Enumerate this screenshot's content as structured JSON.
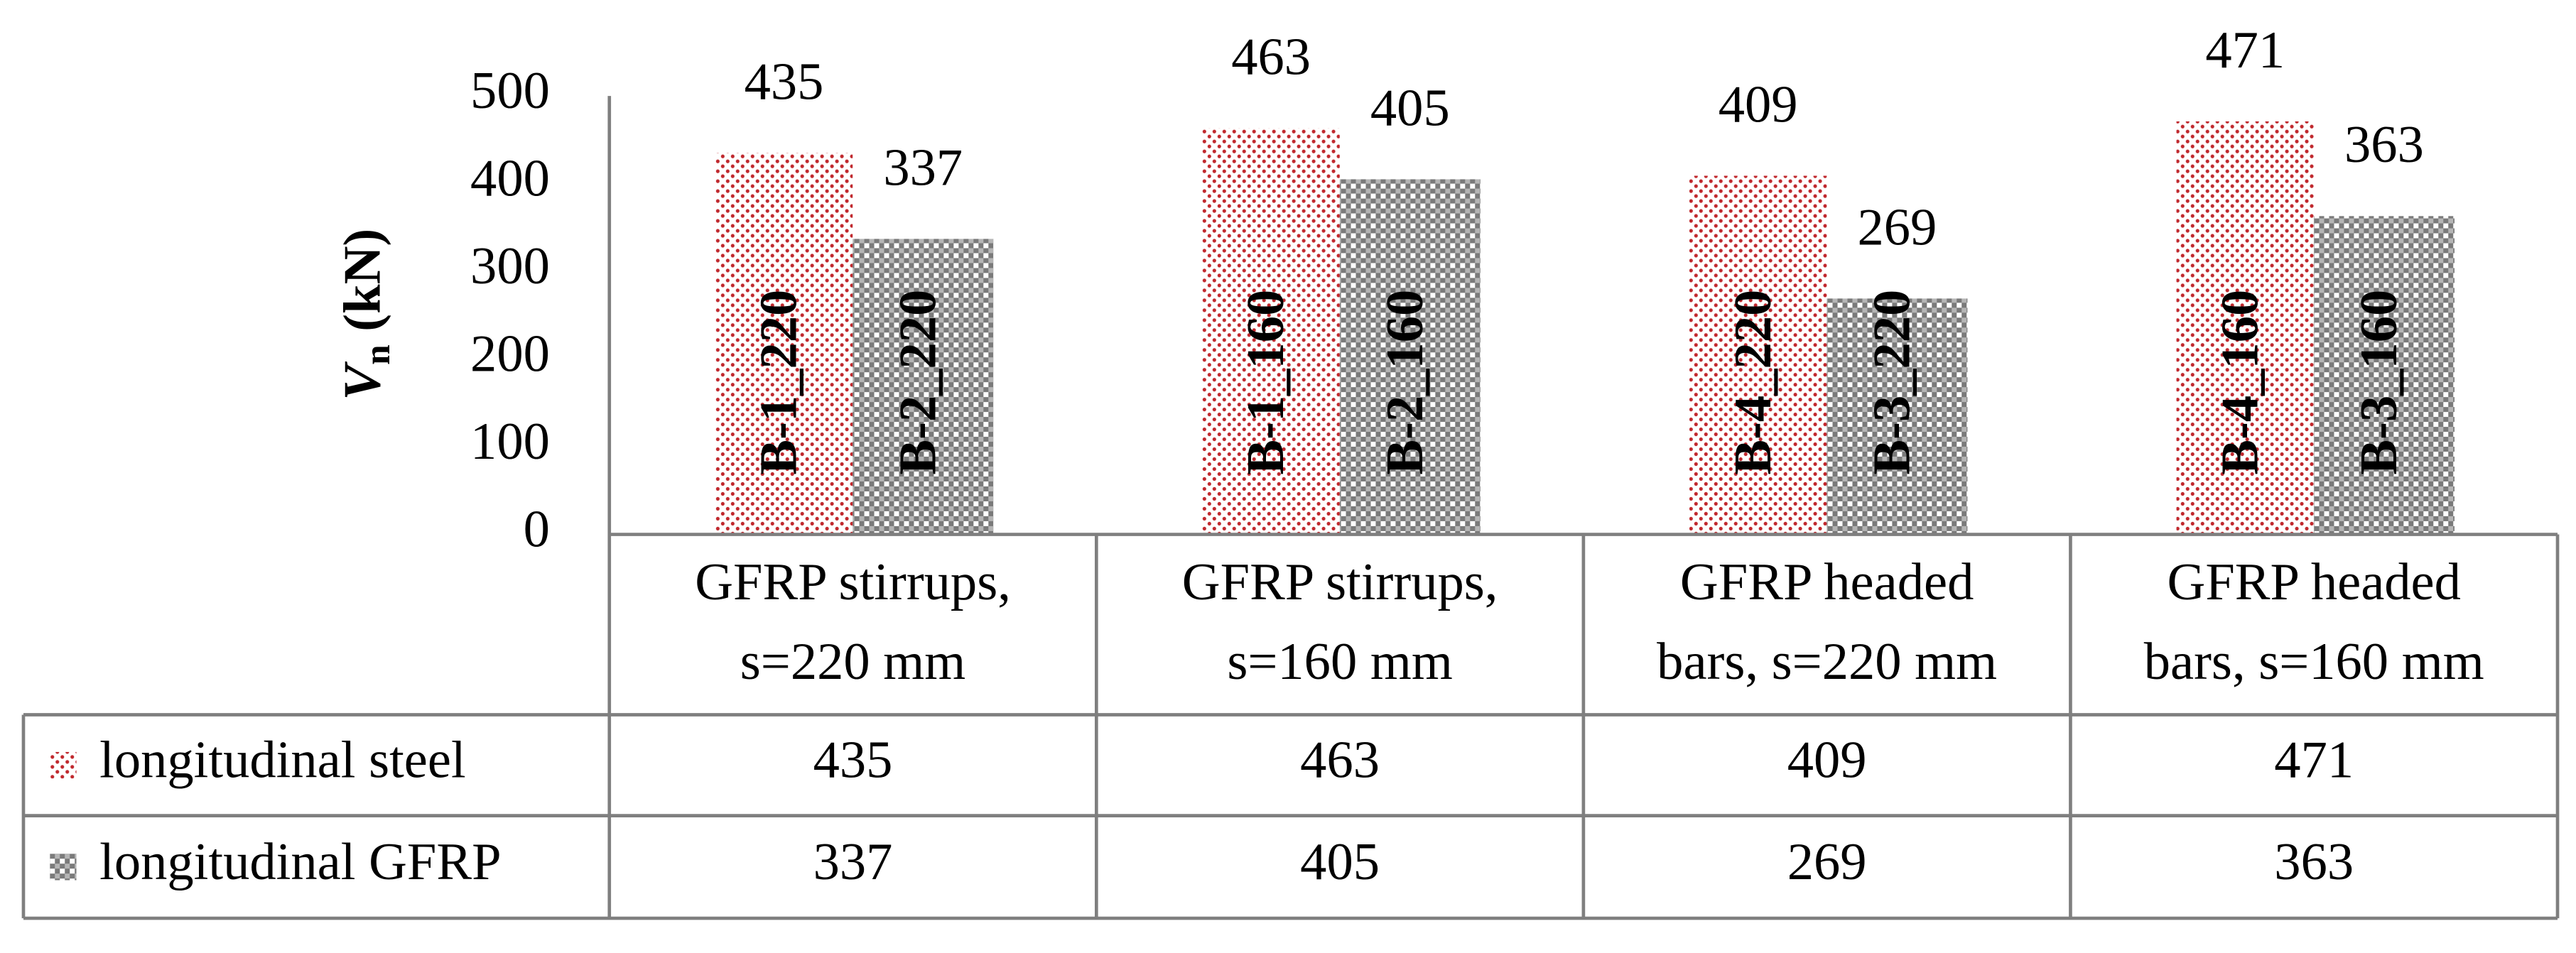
{
  "chart_data": {
    "type": "bar",
    "ylabel_parts": [
      "V",
      "n",
      " (kN)"
    ],
    "categories": [
      [
        "GFRP stirrups,",
        "s=220 mm"
      ],
      [
        "GFRP stirrups,",
        "s=160 mm"
      ],
      [
        "GFRP headed",
        "bars, s=220 mm"
      ],
      [
        "GFRP headed",
        "bars, s=160 mm"
      ]
    ],
    "series": [
      {
        "name": "longitudinal steel",
        "color": "#c0282d",
        "pattern": "dots",
        "values": [
          435,
          463,
          409,
          471
        ],
        "bar_labels": [
          "B-1_220",
          "B-1_160",
          "B-4_220",
          "B-4_160"
        ]
      },
      {
        "name": "longitudinal GFRP",
        "color": "#7a7a7a",
        "pattern": "checker",
        "values": [
          337,
          405,
          269,
          363
        ],
        "bar_labels": [
          "B-2_220",
          "B-2_160",
          "B-3_220",
          "B-3_160"
        ]
      }
    ],
    "ylim": [
      0,
      500
    ],
    "yticks": [
      0,
      100,
      200,
      300,
      400,
      500
    ],
    "grid": false,
    "data_table": true
  }
}
